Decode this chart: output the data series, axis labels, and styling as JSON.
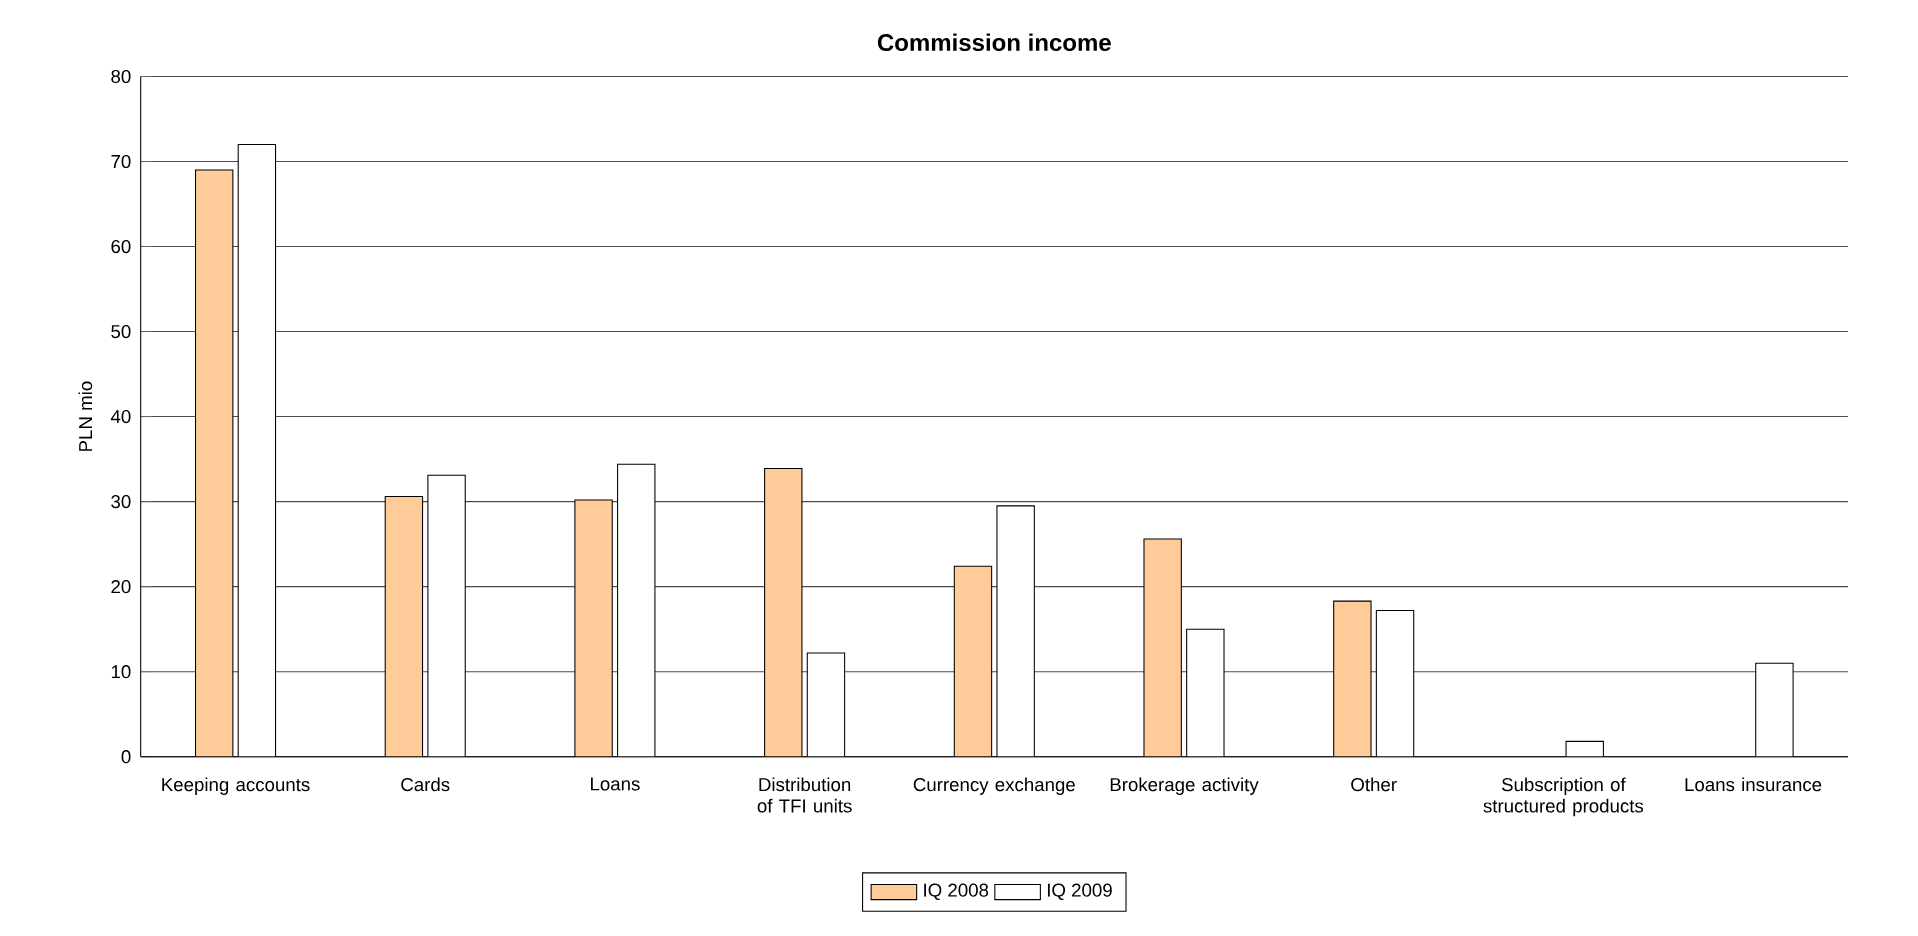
{
  "chart_data": {
    "type": "bar",
    "title": "Commission income",
    "ylabel": "PLN mio",
    "categories": [
      "Keeping accounts",
      "Cards",
      "Loans",
      "Distribution of TFI units",
      "Currency exchange",
      "Brokerage activity",
      "Other",
      "Subscription of structured products",
      "Loans insurance"
    ],
    "series": [
      {
        "name": "IQ 2008",
        "color": "#ffcc99",
        "values": [
          69,
          30.6,
          30.2,
          33.9,
          22.4,
          25.6,
          18.3,
          null,
          null
        ]
      },
      {
        "name": "IQ 2009",
        "color": "#ffffff",
        "values": [
          72,
          33.1,
          34.4,
          12.2,
          29.5,
          15,
          17.2,
          1.8,
          11
        ]
      }
    ],
    "ylim": [
      0,
      80
    ],
    "yticks": [
      0,
      10,
      20,
      30,
      40,
      50,
      60,
      70,
      80
    ],
    "grid": "y",
    "legend": "bottom"
  }
}
